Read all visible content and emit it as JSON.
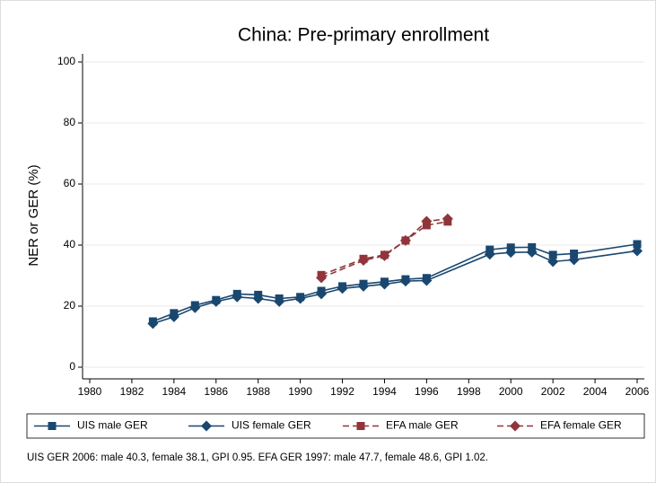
{
  "chart_data": {
    "type": "line",
    "title": "China: Pre-primary enrollment",
    "y_label": "NER or GER (%)",
    "note": "UIS GER 2006: male 40.3, female 38.1, GPI 0.95. EFA GER 1997: male 47.7, female 48.6, GPI 1.02.",
    "xlim": [
      1980,
      2006
    ],
    "xticks": [
      1980,
      1982,
      1984,
      1986,
      1988,
      1990,
      1992,
      1994,
      1996,
      1998,
      2000,
      2002,
      2004,
      2006
    ],
    "ylim": [
      0,
      100
    ],
    "yticks": [
      0,
      20,
      40,
      60,
      80,
      100
    ],
    "grid": true,
    "series": [
      {
        "name": "UIS male GER",
        "color": "#1a476f",
        "marker": "square",
        "dash": false,
        "x": [
          1983,
          1984,
          1985,
          1986,
          1987,
          1988,
          1989,
          1990,
          1991,
          1992,
          1993,
          1994,
          1995,
          1996,
          1999,
          2000,
          2001,
          2002,
          2003,
          2006
        ],
        "values": [
          15,
          17.7,
          20.3,
          22,
          24,
          23.7,
          22.5,
          23,
          25,
          26.5,
          27.3,
          28,
          28.8,
          29.2,
          38.5,
          39.2,
          39.3,
          36.8,
          37.2,
          40.3
        ]
      },
      {
        "name": "UIS female GER",
        "color": "#1a476f",
        "marker": "diamond",
        "dash": false,
        "x": [
          1983,
          1984,
          1985,
          1986,
          1987,
          1988,
          1989,
          1990,
          1991,
          1992,
          1993,
          1994,
          1995,
          1996,
          1999,
          2000,
          2001,
          2002,
          2003,
          2006
        ],
        "values": [
          14.3,
          16.5,
          19.5,
          21.5,
          23,
          22.5,
          21.5,
          22.5,
          24,
          25.8,
          26.5,
          27.2,
          28.2,
          28.4,
          37,
          37.6,
          37.7,
          34.6,
          35.2,
          38.1
        ]
      },
      {
        "name": "EFA male GER",
        "color": "#90353b",
        "marker": "square",
        "dash": true,
        "x": [
          1991,
          1993,
          1994,
          1995,
          1996,
          1997
        ],
        "values": [
          30.2,
          35.5,
          36.8,
          41.5,
          46.5,
          47.7
        ]
      },
      {
        "name": "EFA female GER",
        "color": "#90353b",
        "marker": "diamond",
        "dash": true,
        "x": [
          1991,
          1993,
          1994,
          1995,
          1996,
          1997
        ],
        "values": [
          29.3,
          35,
          36.5,
          41.5,
          47.8,
          48.6
        ]
      }
    ]
  }
}
